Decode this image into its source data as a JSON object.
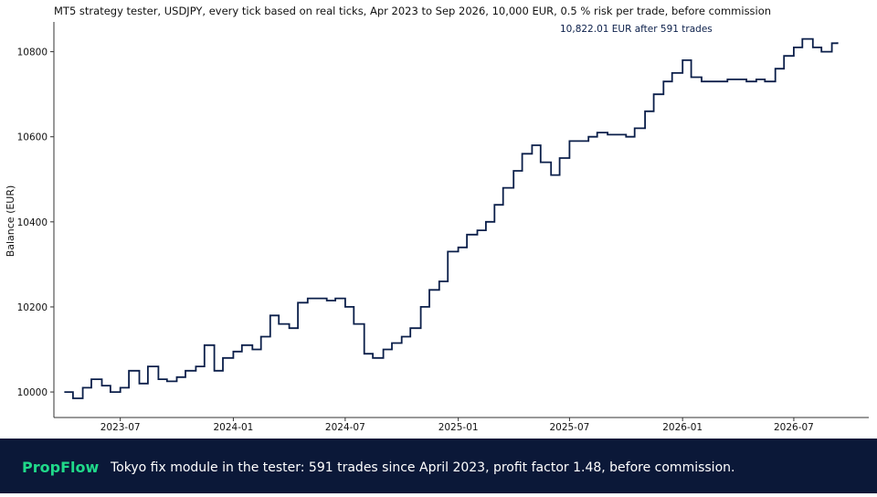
{
  "chart_data": {
    "type": "line",
    "title": "MT5 strategy tester, USDJPY, every tick based on real ticks, Apr 2023 to Sep 2026, 10,000 EUR, 0.5 % risk per trade, before commission",
    "ylabel": "Balance (EUR)",
    "xlabel": "",
    "annotation": "10,822.01 EUR after 591 trades",
    "ylim": [
      9940,
      10870
    ],
    "xlim": [
      "2023-03-15",
      "2026-10-31"
    ],
    "yticks": [
      10000,
      10200,
      10400,
      10600,
      10800
    ],
    "xticks": [
      "2023-07",
      "2024-01",
      "2024-07",
      "2025-01",
      "2025-07",
      "2026-01",
      "2026-07"
    ],
    "grid": false,
    "line_color": "#0b1f4a",
    "series": [
      {
        "x": [
          "2023-04-01",
          "2023-04-15",
          "2023-05-01",
          "2023-05-15",
          "2023-06-01",
          "2023-06-15",
          "2023-07-01",
          "2023-07-15",
          "2023-08-01",
          "2023-08-15",
          "2023-09-01",
          "2023-09-15",
          "2023-10-01",
          "2023-10-15",
          "2023-11-01",
          "2023-11-15",
          "2023-12-01",
          "2023-12-15",
          "2024-01-01",
          "2024-01-15",
          "2024-02-01",
          "2024-02-15",
          "2024-03-01",
          "2024-03-15",
          "2024-04-01",
          "2024-04-15",
          "2024-05-01",
          "2024-05-15",
          "2024-06-01",
          "2024-06-15",
          "2024-07-01",
          "2024-07-15",
          "2024-08-01",
          "2024-08-15",
          "2024-09-01",
          "2024-09-15",
          "2024-10-01",
          "2024-10-15",
          "2024-11-01",
          "2024-11-15",
          "2024-12-01",
          "2024-12-15",
          "2025-01-01",
          "2025-01-15",
          "2025-02-01",
          "2025-02-15",
          "2025-03-01",
          "2025-03-15",
          "2025-04-01",
          "2025-04-15",
          "2025-05-01",
          "2025-05-15",
          "2025-06-01",
          "2025-06-15",
          "2025-07-01",
          "2025-07-15",
          "2025-08-01",
          "2025-08-15",
          "2025-09-01",
          "2025-09-15",
          "2025-10-01",
          "2025-10-15",
          "2025-11-01",
          "2025-11-15",
          "2025-12-01",
          "2025-12-15",
          "2026-01-01",
          "2026-01-15",
          "2026-02-01",
          "2026-02-15",
          "2026-03-01",
          "2026-03-15",
          "2026-04-01",
          "2026-04-15",
          "2026-05-01",
          "2026-05-15",
          "2026-06-01",
          "2026-06-15",
          "2026-07-01",
          "2026-07-15",
          "2026-08-01",
          "2026-08-15",
          "2026-09-01",
          "2026-09-10"
        ],
        "values": [
          10000,
          9985,
          10010,
          10030,
          10015,
          10000,
          10010,
          10050,
          10020,
          10060,
          10030,
          10025,
          10035,
          10050,
          10060,
          10110,
          10050,
          10080,
          10095,
          10110,
          10100,
          10130,
          10180,
          10160,
          10150,
          10210,
          10220,
          10220,
          10215,
          10220,
          10200,
          10160,
          10090,
          10080,
          10100,
          10115,
          10130,
          10150,
          10200,
          10240,
          10260,
          10330,
          10340,
          10370,
          10380,
          10400,
          10440,
          10480,
          10520,
          10560,
          10580,
          10540,
          10510,
          10550,
          10590,
          10590,
          10600,
          10610,
          10605,
          10605,
          10600,
          10620,
          10660,
          10700,
          10730,
          10750,
          10780,
          10740,
          10730,
          10730,
          10730,
          10735,
          10735,
          10730,
          10735,
          10730,
          10760,
          10790,
          10810,
          10830,
          10810,
          10800,
          10820,
          10822.01
        ]
      }
    ]
  },
  "footer": {
    "brand": "PropFlow",
    "text": "Tokyo fix module in the tester: 591 trades since April 2023, profit factor 1.48, before commission."
  }
}
